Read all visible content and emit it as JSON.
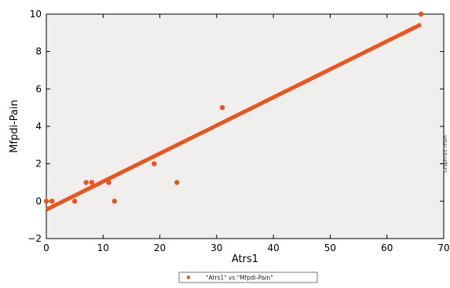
{
  "chart_data": {
    "type": "scatter",
    "xlabel": "Atrs1",
    "ylabel": "Mfpdi-Pain",
    "xlim": [
      0,
      70
    ],
    "ylim": [
      -2,
      10
    ],
    "x_ticks": [
      0,
      10,
      20,
      30,
      40,
      50,
      60,
      70
    ],
    "y_ticks": [
      -2,
      0,
      2,
      4,
      6,
      8,
      10
    ],
    "grid": false,
    "legend_position": "bottom-center",
    "plot_background": "#f1efed",
    "series": [
      {
        "name": "\"Atrs1\" vs \"Mfpdi-Pain\"",
        "type": "scatter",
        "color": "#e8551e",
        "x": [
          0,
          1,
          5,
          7,
          8,
          11,
          12,
          19,
          23,
          31,
          66
        ],
        "y": [
          0,
          0,
          0,
          1,
          1,
          1,
          0,
          2,
          1,
          5,
          10
        ]
      }
    ],
    "fit_line": {
      "color": "#e8551e",
      "x": [
        0,
        66
      ],
      "y": [
        -0.45,
        9.45
      ]
    },
    "side_annotation": "GraphPad Prism"
  }
}
